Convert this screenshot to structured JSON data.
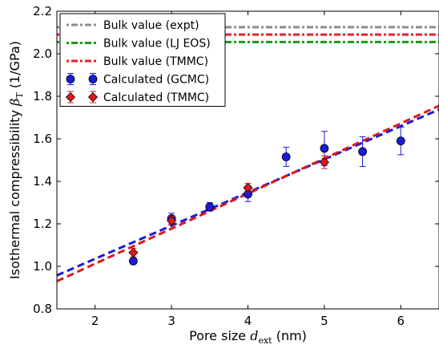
{
  "chart_data": {
    "type": "scatter",
    "xlabel": {
      "prefix": "Pore size ",
      "math": "d",
      "sub": "ext",
      "suffix": " (nm)"
    },
    "ylabel": {
      "prefix": "Isothermal compressibility ",
      "math": "β",
      "sub": "T",
      "suffix": " (1/GPa)"
    },
    "xlim": [
      1.5,
      6.5
    ],
    "ylim": [
      0.8,
      2.2
    ],
    "xticks": [
      2,
      3,
      4,
      5,
      6
    ],
    "xtick_labels": [
      "2",
      "3",
      "4",
      "5",
      "6"
    ],
    "yticks": [
      0.8,
      1.0,
      1.2,
      1.4,
      1.6,
      1.8,
      2.0,
      2.2
    ],
    "ytick_labels": [
      "0.8",
      "1.0",
      "1.2",
      "1.4",
      "1.6",
      "1.8",
      "2.0",
      "2.2"
    ],
    "grid": false,
    "legend_placement": "top-left",
    "hlines": [
      {
        "name": "Bulk value (expt)",
        "y": 2.125,
        "color": "#8c8c8c"
      },
      {
        "name": "Bulk value (LJ EOS)",
        "y": 2.055,
        "color": "#1a9a1a"
      },
      {
        "name": "Bulk value (TMMC)",
        "y": 2.09,
        "color": "#e8202a"
      }
    ],
    "series": [
      {
        "name": "Calculated (GCMC)",
        "color": "#1a1adc",
        "marker": "circle",
        "x": [
          2.5,
          3.0,
          3.5,
          4.0,
          4.5,
          5.0,
          5.5,
          6.0
        ],
        "y": [
          1.025,
          1.225,
          1.28,
          1.34,
          1.515,
          1.555,
          1.54,
          1.59
        ],
        "yerr": [
          0.01,
          0.025,
          0.02,
          0.035,
          0.045,
          0.08,
          0.07,
          0.065
        ]
      },
      {
        "name": "Calculated (TMMC)",
        "color": "#dc1a1a",
        "marker": "diamond",
        "x": [
          2.5,
          3.0,
          4.0,
          5.0
        ],
        "y": [
          1.065,
          1.215,
          1.37,
          1.49
        ],
        "yerr": [
          0.02,
          0.02,
          0.02,
          0.03
        ]
      }
    ],
    "fits": [
      {
        "color": "#1a1adc",
        "slope": 0.156,
        "intercept": 0.7235
      },
      {
        "color": "#dc1a1a",
        "slope": 0.165,
        "intercept": 0.6825
      }
    ]
  }
}
